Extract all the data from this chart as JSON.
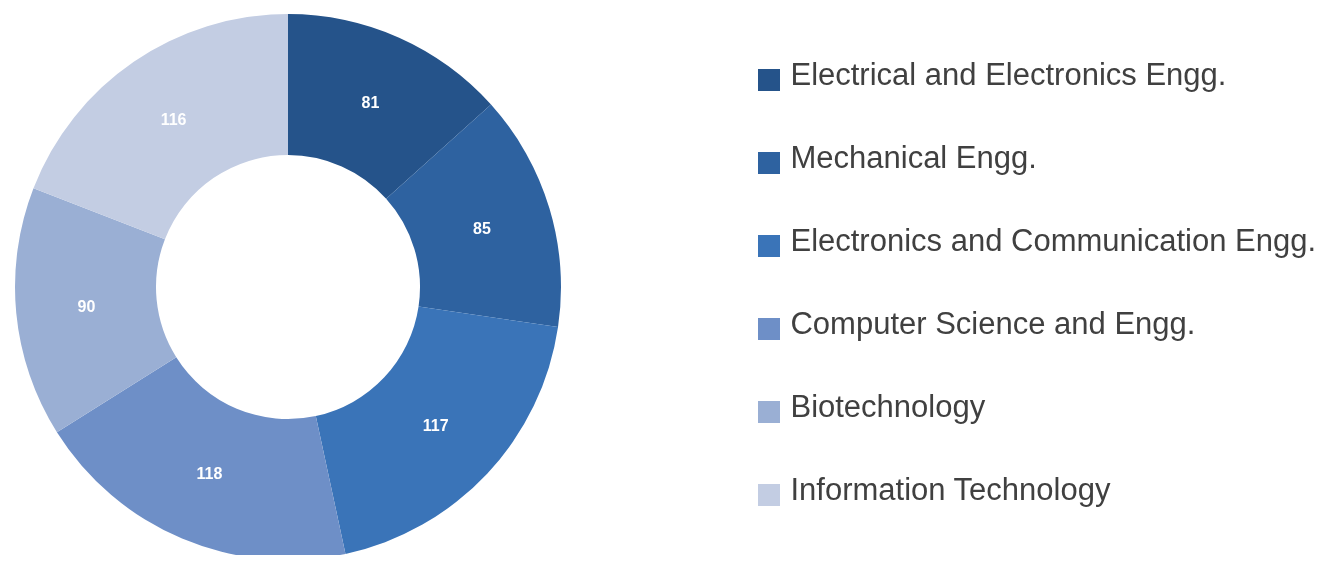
{
  "chart_data": {
    "type": "donut",
    "categories": [
      "Electrical and Electronics Engg.",
      "Mechanical Engg.",
      "Electronics and Communication Engg.",
      "Computer Science and Engg.",
      "Biotechnology",
      "Information Technology"
    ],
    "values": [
      81,
      85,
      117,
      118,
      90,
      116
    ],
    "colors": [
      "#25538a",
      "#2e62a0",
      "#3a74b8",
      "#6e8fc7",
      "#9aafd4",
      "#c3cde3"
    ],
    "data_labels": true,
    "legend": "right"
  }
}
